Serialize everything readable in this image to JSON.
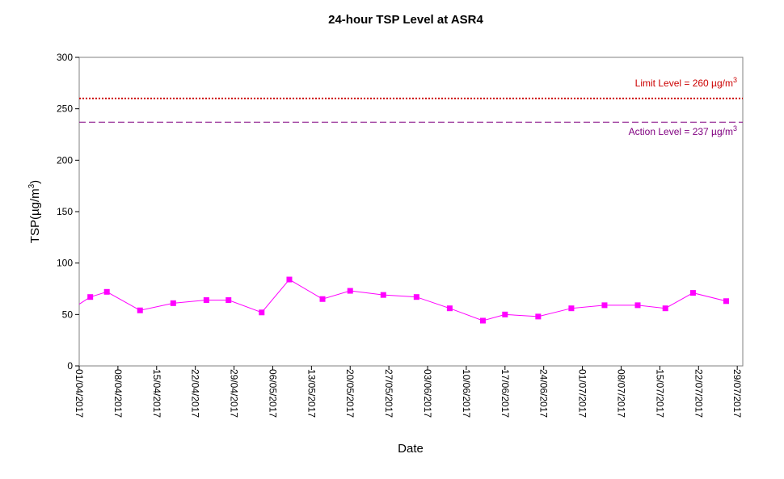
{
  "chart_data": {
    "type": "line",
    "title": "24-hour TSP Level at ASR4",
    "xlabel": "Date",
    "ylabel": "TSP(µg/m3)",
    "ylabel_parts": {
      "main": "TSP(µg/m",
      "sup": "3",
      "close": ")"
    },
    "xlim": [
      "01/04/2017",
      "30/07/2017"
    ],
    "ylim": [
      0,
      300
    ],
    "y_ticks": [
      0,
      50,
      100,
      150,
      200,
      250,
      300
    ],
    "x_ticks": [
      "01/04/2017",
      "08/04/2017",
      "15/04/2017",
      "22/04/2017",
      "29/04/2017",
      "06/05/2017",
      "13/05/2017",
      "20/05/2017",
      "27/05/2017",
      "03/06/2017",
      "10/06/2017",
      "17/06/2017",
      "24/06/2017",
      "01/07/2017",
      "08/07/2017",
      "15/07/2017",
      "22/07/2017",
      "29/07/2017"
    ],
    "grid": false,
    "series": [
      {
        "color": "#ff00ff",
        "x": [
          "31/03/2017",
          "03/04/2017",
          "06/04/2017",
          "12/04/2017",
          "18/04/2017",
          "24/04/2017",
          "28/04/2017",
          "04/05/2017",
          "09/05/2017",
          "15/05/2017",
          "20/05/2017",
          "26/05/2017",
          "01/06/2017",
          "07/06/2017",
          "13/06/2017",
          "17/06/2017",
          "23/06/2017",
          "29/06/2017",
          "05/07/2017",
          "11/07/2017",
          "16/07/2017",
          "21/07/2017",
          "27/07/2017"
        ],
        "values": [
          60,
          67,
          72,
          54,
          61,
          64,
          64,
          52,
          84,
          65,
          73,
          69,
          67,
          56,
          44,
          50,
          48,
          56,
          59,
          59,
          56,
          71,
          63
        ]
      }
    ],
    "reference_lines": [
      {
        "value": 260,
        "label_main": "Limit Level = 260 µg/m",
        "label_sup": "3",
        "color": "#cc0000",
        "style": "dotted"
      },
      {
        "value": 237,
        "label_main": "Action Level = 237 µg/m",
        "label_sup": "3",
        "color": "#800080",
        "style": "dashed"
      }
    ]
  }
}
